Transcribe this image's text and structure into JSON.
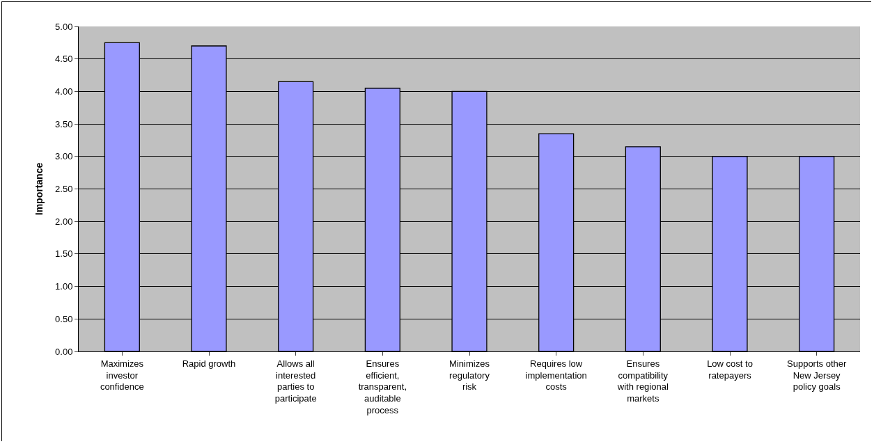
{
  "chart_data": {
    "type": "bar",
    "ylabel": "Importance",
    "categories": [
      "Maximizes investor confidence",
      "Rapid growth",
      "Allows all interested parties to participate",
      "Ensures efficient, transparent, auditable process",
      "Minimizes regulatory risk",
      "Requires low implementation costs",
      "Ensures compatibility with regional markets",
      "Low cost to ratepayers",
      "Supports other New Jersey policy goals"
    ],
    "values": [
      4.75,
      4.7,
      4.15,
      4.05,
      4.0,
      3.35,
      3.15,
      3.0,
      3.0
    ],
    "color": "#9999ff",
    "ylim": [
      0,
      5
    ],
    "yticks": [
      {
        "value": 0,
        "label": "0.00"
      },
      {
        "value": 0.5,
        "label": "0.50"
      },
      {
        "value": 1,
        "label": "1.00"
      },
      {
        "value": 1.5,
        "label": "1.50"
      },
      {
        "value": 2,
        "label": "2.00"
      },
      {
        "value": 2.5,
        "label": "2.50"
      },
      {
        "value": 3,
        "label": "3.00"
      },
      {
        "value": 3.5,
        "label": "3.50"
      },
      {
        "value": 4,
        "label": "4.00"
      },
      {
        "value": 4.5,
        "label": "4.50"
      },
      {
        "value": 5,
        "label": "5.00"
      }
    ],
    "grid": "y"
  }
}
